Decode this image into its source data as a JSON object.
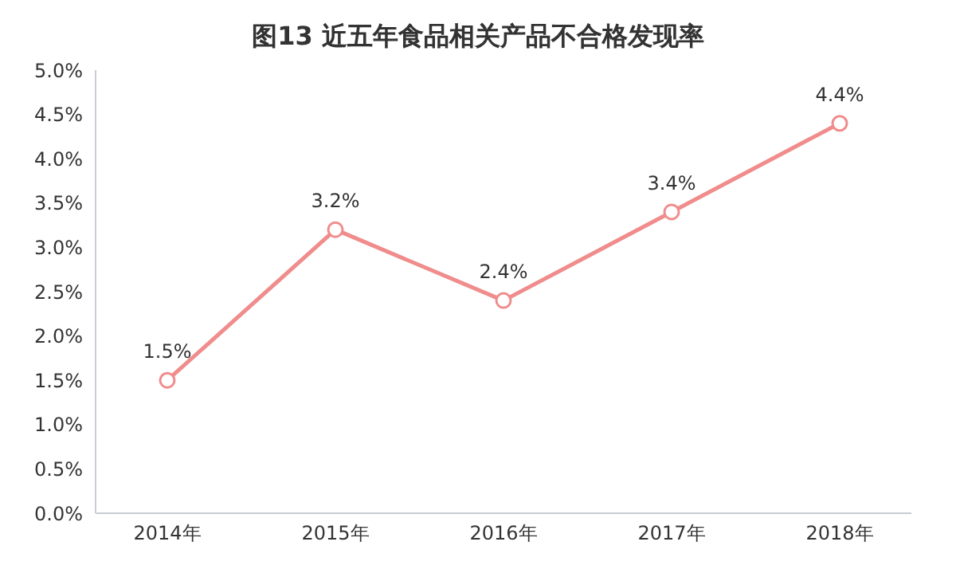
{
  "chart_data": {
    "type": "line",
    "title": "图13 近五年食品相关产品不合格发现率",
    "categories": [
      "2014年",
      "2015年",
      "2016年",
      "2017年",
      "2018年"
    ],
    "series": [
      {
        "color": "#f08c8c",
        "values": [
          1.5,
          3.2,
          2.4,
          3.4,
          4.4
        ],
        "value_labels": [
          "1.5%",
          "3.2%",
          "2.4%",
          "3.4%",
          "4.4%"
        ]
      }
    ],
    "ylim": [
      0,
      5
    ],
    "yticks": [
      {
        "value": 0,
        "label": "0.0%"
      },
      {
        "value": 0.5,
        "label": "0.5%"
      },
      {
        "value": 1,
        "label": "1.0%"
      },
      {
        "value": 1.5,
        "label": "1.5%"
      },
      {
        "value": 2,
        "label": "2.0%"
      },
      {
        "value": 2.5,
        "label": "2.5%"
      },
      {
        "value": 3,
        "label": "3.0%"
      },
      {
        "value": 3.5,
        "label": "3.5%"
      },
      {
        "value": 4,
        "label": "4.0%"
      },
      {
        "value": 4.5,
        "label": "4.5%"
      },
      {
        "value": 5,
        "label": "5.0%"
      }
    ],
    "grid": false,
    "legend": false,
    "marker": "circle",
    "line_style": "solid"
  }
}
